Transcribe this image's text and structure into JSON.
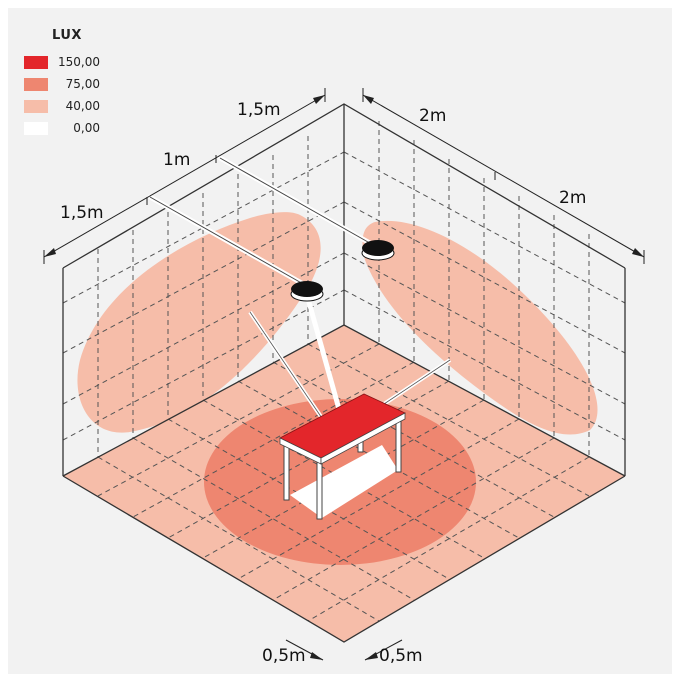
{
  "legend": {
    "title": "LUX",
    "items": [
      {
        "color": "#e3262b",
        "value": "150,00"
      },
      {
        "color": "#ee8670",
        "value": "75,00"
      },
      {
        "color": "#f6bda9",
        "value": "40,00"
      },
      {
        "color": "#ffffff",
        "value": "0,00"
      }
    ]
  },
  "dimensions": {
    "left_wall_1": "1,5m",
    "left_wall_2": "1m",
    "left_wall_3": "1,5m",
    "right_wall_1": "2m",
    "right_wall_2": "2m",
    "floor_left": "0,5m",
    "floor_right": "0,5m"
  },
  "colors": {
    "background": "#f2f2f2",
    "floor": "#f6bda9",
    "wall_light": "#f6bda9",
    "floor_mid": "#ee8670",
    "table_top": "#e3262b",
    "lamp": "#111111",
    "grid": "#555555"
  }
}
